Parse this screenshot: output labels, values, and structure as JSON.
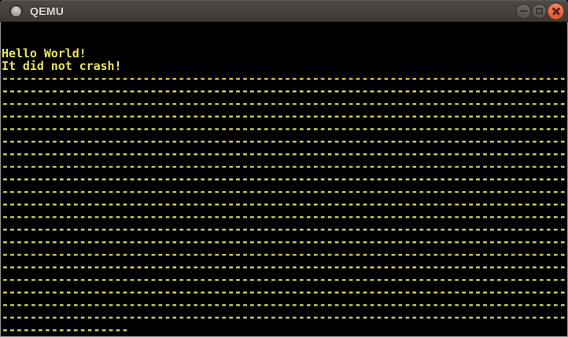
{
  "window": {
    "title": "QEMU",
    "controls": {
      "minimize_icon": "minus",
      "maximize_icon": "square-outline",
      "close_icon": "cross"
    },
    "window_icon": "circle-dot"
  },
  "colors": {
    "screen_bg": "#000000",
    "screen_text": "#e8e35c",
    "titlebar_top": "#4e4b46",
    "titlebar_bottom": "#3b3834",
    "title_text": "#dcd8d0",
    "window_border": "#8e8e8e",
    "button_face_top": "#6d6961",
    "button_face_bottom": "#514e47",
    "button_symbol": "#3a3831",
    "close_top": "#f1815e",
    "close_bottom": "#dd5a2e",
    "close_border": "#a23c1c",
    "close_symbol": "#5e2414"
  },
  "screen": {
    "mode": "vga-text-80x25",
    "columns": 80,
    "rows_total": 25,
    "rows": [
      {
        "text": ""
      },
      {
        "text": ""
      },
      {
        "text": "Hello World!"
      },
      {
        "text": "It did not crash!"
      },
      {
        "repeat": "-",
        "count": 80
      },
      {
        "repeat": "-",
        "count": 80
      },
      {
        "repeat": "-",
        "count": 80
      },
      {
        "repeat": "-",
        "count": 80
      },
      {
        "repeat": "-",
        "count": 80
      },
      {
        "repeat": "-",
        "count": 80
      },
      {
        "repeat": "-",
        "count": 80
      },
      {
        "repeat": "-",
        "count": 80
      },
      {
        "repeat": "-",
        "count": 80
      },
      {
        "repeat": "-",
        "count": 80
      },
      {
        "repeat": "-",
        "count": 80
      },
      {
        "repeat": "-",
        "count": 80
      },
      {
        "repeat": "-",
        "count": 80
      },
      {
        "repeat": "-",
        "count": 80
      },
      {
        "repeat": "-",
        "count": 80
      },
      {
        "repeat": "-",
        "count": 80
      },
      {
        "repeat": "-",
        "count": 80
      },
      {
        "repeat": "-",
        "count": 80
      },
      {
        "repeat": "-",
        "count": 80
      },
      {
        "repeat": "-",
        "count": 80
      },
      {
        "repeat": "-",
        "count": 18
      }
    ]
  }
}
